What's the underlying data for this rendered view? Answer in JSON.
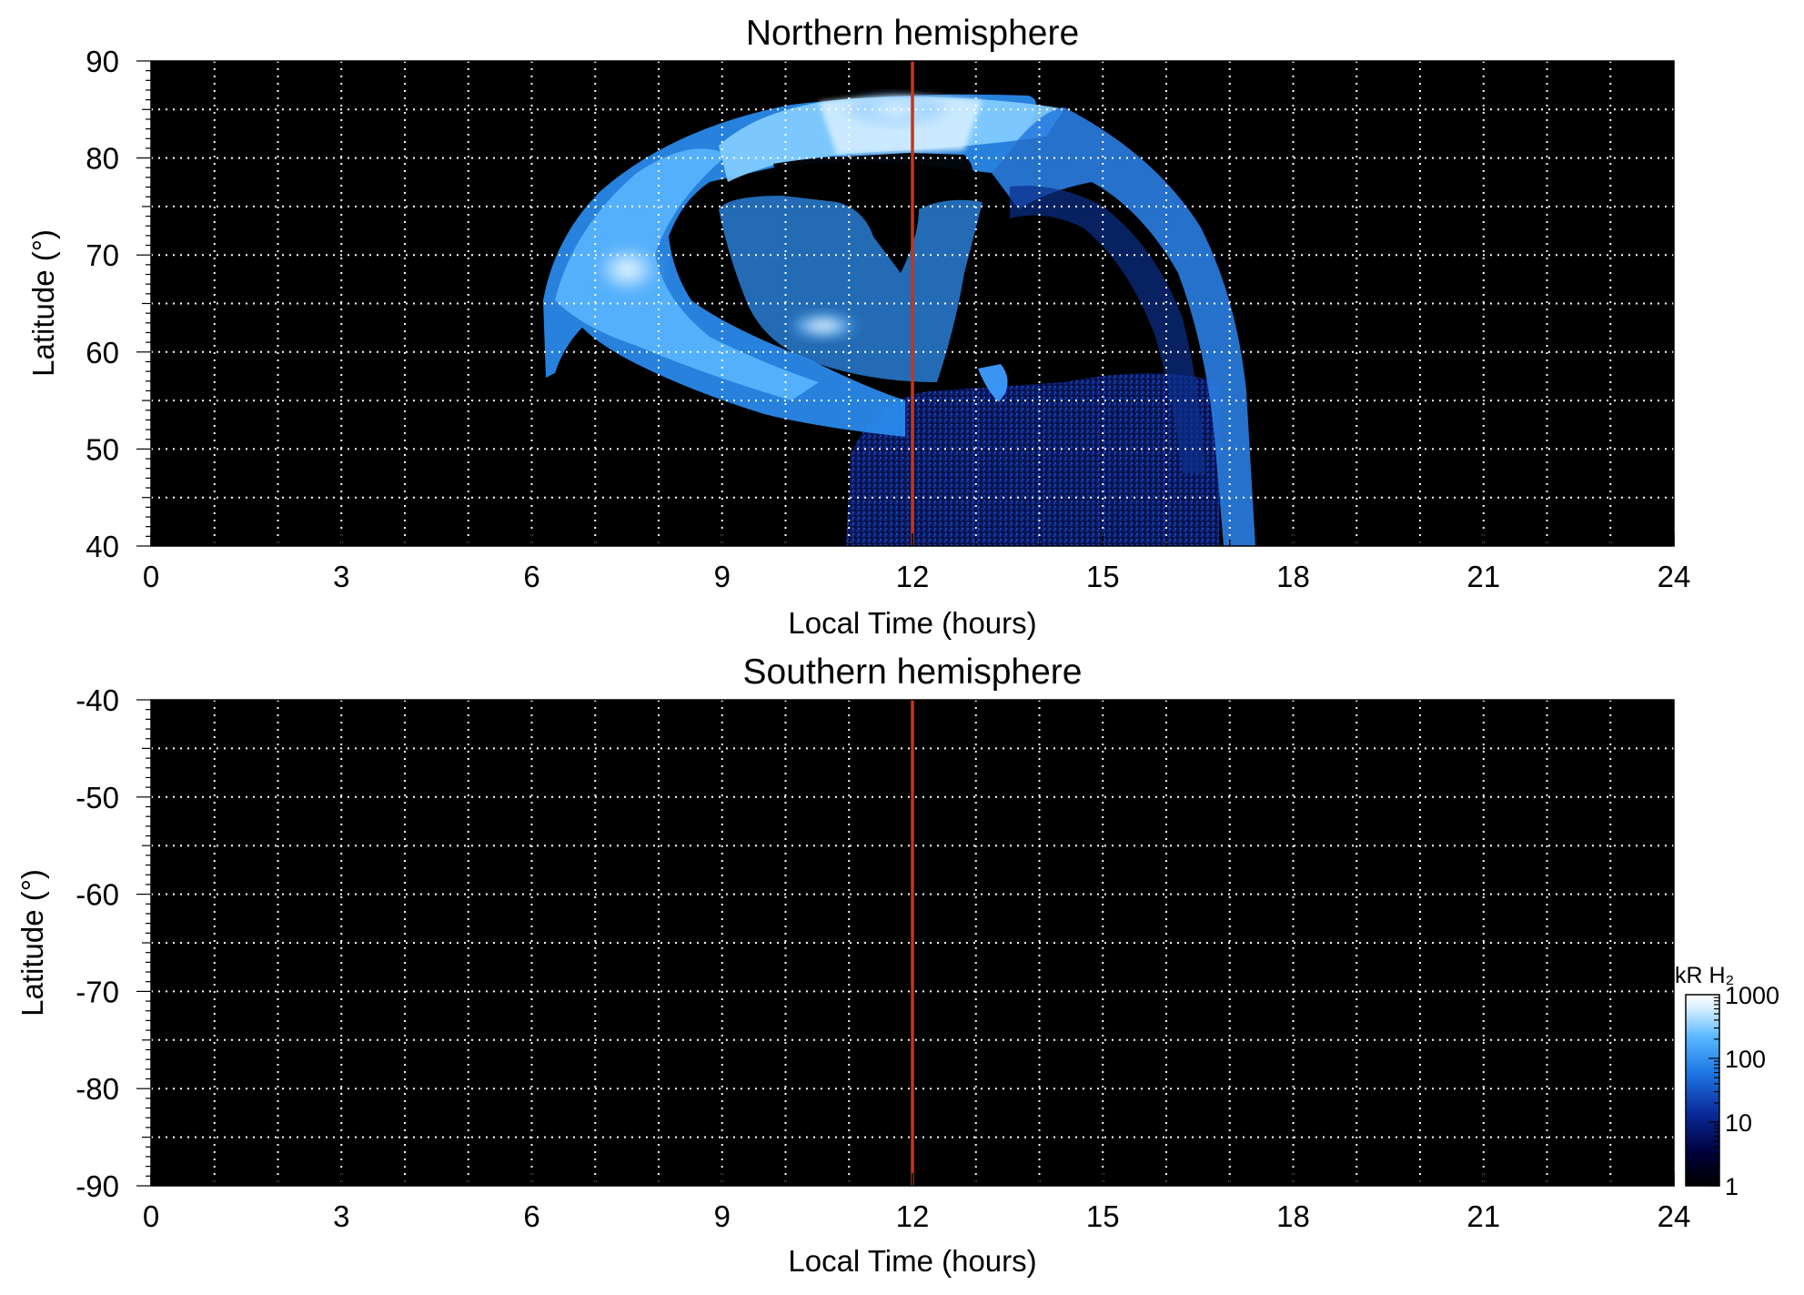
{
  "chart_data": [
    {
      "type": "heatmap",
      "title": "Northern hemisphere",
      "xlabel": "Local Time (hours)",
      "ylabel": "Latitude (°)",
      "xlim": [
        0,
        24
      ],
      "ylim": [
        40,
        90
      ],
      "x_ticks": [
        "0",
        "3",
        "6",
        "9",
        "12",
        "15",
        "18",
        "21",
        "24"
      ],
      "y_ticks": [
        "40",
        "50",
        "60",
        "70",
        "80",
        "90"
      ],
      "grid": true,
      "grid_x_step_hours": 1,
      "grid_y_step_deg": 5,
      "background_color": "#000000",
      "noon_line": {
        "x": 12,
        "color": "#cc3311"
      },
      "emission": "main auroral oval between about 6 and 17.5 LT, 50–87° latitude, brightest near 7.5–8 LT at ~69°",
      "emission_points": [
        {
          "lt": 6.4,
          "lat": 63,
          "kR": 80
        },
        {
          "lt": 7.0,
          "lat": 70,
          "kR": 200
        },
        {
          "lt": 7.8,
          "lat": 69,
          "kR": 800
        },
        {
          "lt": 8.5,
          "lat": 78,
          "kR": 150
        },
        {
          "lt": 9.0,
          "lat": 66,
          "kR": 300
        },
        {
          "lt": 10.5,
          "lat": 63,
          "kR": 600
        },
        {
          "lt": 11.5,
          "lat": 83,
          "kR": 700
        },
        {
          "lt": 12.5,
          "lat": 84,
          "kR": 700
        },
        {
          "lt": 13.5,
          "lat": 56,
          "kR": 60
        },
        {
          "lt": 14.5,
          "lat": 80,
          "kR": 250
        },
        {
          "lt": 16.5,
          "lat": 63,
          "kR": 120
        },
        {
          "lt": 17.0,
          "lat": 48,
          "kR": 60
        }
      ]
    },
    {
      "type": "heatmap",
      "title": "Southern hemisphere",
      "xlabel": "Local Time (hours)",
      "ylabel": "Latitude (°)",
      "xlim": [
        0,
        24
      ],
      "ylim": [
        -90,
        -40
      ],
      "x_ticks": [
        "0",
        "3",
        "6",
        "9",
        "12",
        "15",
        "18",
        "21",
        "24"
      ],
      "y_ticks": [
        "-40",
        "-50",
        "-60",
        "-70",
        "-80",
        "-90"
      ],
      "grid": true,
      "grid_x_step_hours": 1,
      "grid_y_step_deg": 5,
      "background_color": "#000000",
      "noon_line": {
        "x": 12,
        "color": "#cc3311"
      },
      "emission": "no emission",
      "emission_points": []
    }
  ],
  "colorbar": {
    "title": "kR H₂",
    "scale": "log",
    "range": [
      1,
      1000
    ],
    "ticks": [
      "1000",
      "100",
      "10",
      "1"
    ],
    "colors": [
      "#000000",
      "#00003a",
      "#0a2a9a",
      "#1f7ae6",
      "#59b8ff",
      "#d8efff",
      "#ffffff"
    ]
  }
}
